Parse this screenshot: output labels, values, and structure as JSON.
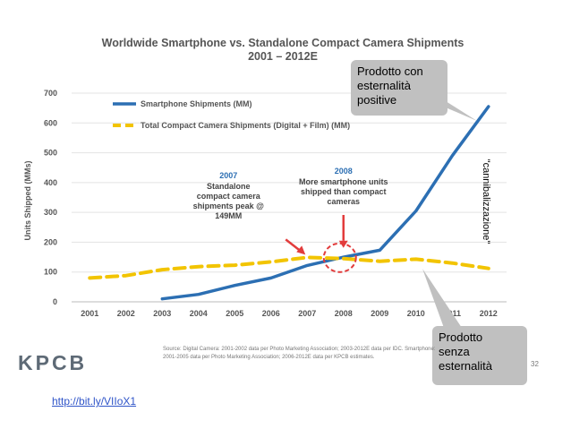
{
  "chart_data": {
    "type": "line",
    "title": "Worldwide Smartphone vs. Standalone Compact Camera Shipments",
    "subtitle": "2001 – 2012E",
    "ylabel": "Units Shipped (MMs)",
    "ylim": [
      0,
      700
    ],
    "yticks": [
      "0",
      "100",
      "200",
      "300",
      "400",
      "500",
      "600",
      "700"
    ],
    "grid": true,
    "legend_position": "top-left",
    "x": [
      "2001",
      "2002",
      "2003",
      "2004",
      "2005",
      "2006",
      "2007",
      "2008",
      "2009",
      "2010",
      "2011",
      "2012"
    ],
    "series": [
      {
        "name": "Smartphone Shipments (MM)",
        "color": "#2c6fb3",
        "style": "solid",
        "values": [
          null,
          null,
          10,
          25,
          55,
          80,
          122,
          150,
          173,
          305,
          490,
          655
        ]
      },
      {
        "name": "Total Compact Camera Shipments (Digital + Film) (MM)",
        "color": "#f2c400",
        "style": "dashed",
        "values": [
          80,
          88,
          108,
          118,
          123,
          134,
          149,
          145,
          136,
          143,
          130,
          112
        ]
      }
    ],
    "annotations": [
      {
        "year": "2007",
        "text": [
          "Standalone",
          "compact camera",
          "shipments peak @",
          "149MM"
        ],
        "arrow_color": "#e23c3c"
      },
      {
        "year": "2008",
        "text": [
          "More smartphone units",
          "shipped than compact",
          "cameras"
        ],
        "arrow_color": "#e23c3c"
      }
    ],
    "crossover_marker_color": "#e23c3c"
  },
  "callouts": {
    "positive": "Prodotto con\nesternalità\npositive",
    "senza": "Prodotto\nsenza\nesternalità",
    "vertical": "\"cannibalizzazione\""
  },
  "source": "Source: Digital Camera: 2001-2002 data per Photo Marketing Association; 2003-2012E data per IDC. Smartphone: 2001-2005 data per Photo Marketing Association; 2006-2012E data per KPCB estimates.",
  "logo": "KPCB",
  "page_number": "32",
  "link": "http://bit.ly/VIIoX1"
}
